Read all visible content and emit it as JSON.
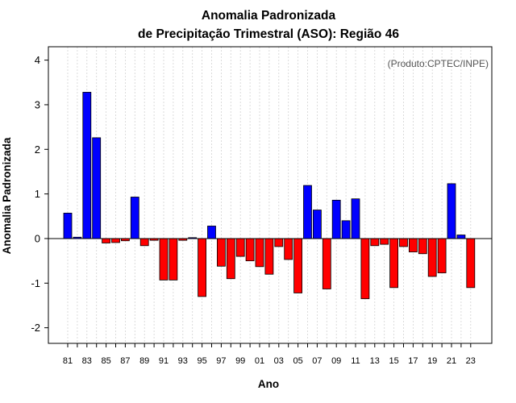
{
  "chart_data": {
    "type": "bar",
    "title_line1": "Anomalia Padronizada",
    "title_line2": "de Precipitação Trimestral (ASO): Região 46",
    "credit": "(Produto:CPTEC/INPE)",
    "xlabel": "Ano",
    "ylabel": "Anomalia Padronizada",
    "ylim": [
      -2.35,
      4.3
    ],
    "yticks": [
      -2,
      -1,
      0,
      1,
      2,
      3,
      4
    ],
    "ytick_labels": [
      "-2",
      "-1",
      "0",
      "1",
      "2",
      "3",
      "4"
    ],
    "years": [
      1981,
      1982,
      1983,
      1984,
      1985,
      1986,
      1987,
      1988,
      1989,
      1990,
      1991,
      1992,
      1993,
      1994,
      1995,
      1996,
      1997,
      1998,
      1999,
      2000,
      2001,
      2002,
      2003,
      2004,
      2005,
      2006,
      2007,
      2008,
      2009,
      2010,
      2011,
      2012,
      2013,
      2014,
      2015,
      2016,
      2017,
      2018,
      2019,
      2020,
      2021,
      2022,
      2023
    ],
    "values": [
      0.57,
      0.03,
      3.28,
      2.26,
      -0.1,
      -0.09,
      -0.05,
      0.93,
      -0.16,
      -0.04,
      -0.93,
      -0.93,
      -0.04,
      0.02,
      -1.3,
      0.28,
      -0.62,
      -0.9,
      -0.4,
      -0.5,
      -0.63,
      -0.8,
      -0.18,
      -0.47,
      -1.22,
      1.19,
      0.64,
      -1.13,
      0.86,
      0.4,
      0.89,
      -1.35,
      -0.16,
      -0.13,
      -1.1,
      -0.18,
      -0.3,
      -0.34,
      -0.85,
      -0.77,
      1.23,
      0.08,
      -1.1
    ],
    "tick_labels": [
      "81",
      "83",
      "85",
      "87",
      "89",
      "91",
      "93",
      "95",
      "97",
      "99",
      "01",
      "03",
      "05",
      "07",
      "09",
      "11",
      "13",
      "15",
      "17",
      "19",
      "21",
      "23"
    ],
    "colors": {
      "positive": "#0000ff",
      "negative": "#ff0000",
      "grid": "#d3d3d3",
      "zero_line": "#000000"
    }
  }
}
